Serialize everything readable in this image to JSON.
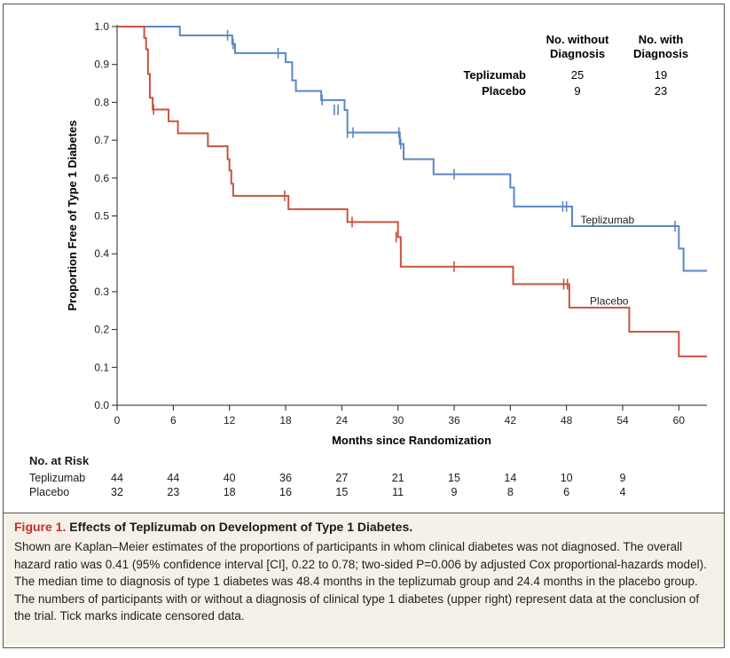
{
  "chart_data": {
    "type": "line",
    "subtype": "kaplan-meier step",
    "xlabel": "Months since Randomization",
    "ylabel": "Proportion Free of Type 1 Diabetes",
    "xlim": [
      0,
      63
    ],
    "ylim": [
      0,
      1.0
    ],
    "xticks": [
      "0",
      "6",
      "12",
      "18",
      "24",
      "30",
      "36",
      "42",
      "48",
      "54",
      "60"
    ],
    "xtick_values": [
      0,
      6,
      12,
      18,
      24,
      30,
      36,
      42,
      48,
      54,
      60
    ],
    "yticks": [
      "0.0",
      "0.1",
      "0.2",
      "0.3",
      "0.4",
      "0.5",
      "0.6",
      "0.7",
      "0.8",
      "0.9",
      "1.0"
    ],
    "ytick_values": [
      0,
      0.1,
      0.2,
      0.3,
      0.4,
      0.5,
      0.6,
      0.7,
      0.8,
      0.9,
      1.0
    ],
    "grid": false,
    "series": [
      {
        "name": "Teplizumab",
        "color": "#5b87c2",
        "steps": [
          [
            0,
            1.0
          ],
          [
            6.7,
            0.977
          ],
          [
            12.3,
            0.954
          ],
          [
            12.6,
            0.93
          ],
          [
            18.0,
            0.906
          ],
          [
            18.7,
            0.858
          ],
          [
            19.1,
            0.83
          ],
          [
            21.8,
            0.806
          ],
          [
            24.3,
            0.78
          ],
          [
            24.6,
            0.72
          ],
          [
            30.2,
            0.69
          ],
          [
            30.6,
            0.65
          ],
          [
            33.8,
            0.61
          ],
          [
            42.0,
            0.575
          ],
          [
            42.4,
            0.525
          ],
          [
            48.6,
            0.473
          ],
          [
            60.0,
            0.414
          ],
          [
            60.5,
            0.355
          ],
          [
            63,
            0.355
          ]
        ],
        "censored": [
          [
            11.8,
            0.977
          ],
          [
            12.4,
            0.954
          ],
          [
            17.2,
            0.93
          ],
          [
            21.9,
            0.806
          ],
          [
            23.2,
            0.78
          ],
          [
            23.6,
            0.78
          ],
          [
            24.6,
            0.72
          ],
          [
            25.2,
            0.72
          ],
          [
            30.1,
            0.72
          ],
          [
            30.3,
            0.69
          ],
          [
            36.0,
            0.61
          ],
          [
            47.6,
            0.525
          ],
          [
            48.0,
            0.525
          ],
          [
            59.6,
            0.473
          ]
        ]
      },
      {
        "name": "Placebo",
        "color": "#c9533f",
        "steps": [
          [
            0,
            1.0
          ],
          [
            2.9,
            0.97
          ],
          [
            3.1,
            0.94
          ],
          [
            3.3,
            0.875
          ],
          [
            3.5,
            0.812
          ],
          [
            3.8,
            0.781
          ],
          [
            5.5,
            0.75
          ],
          [
            6.5,
            0.718
          ],
          [
            9.7,
            0.684
          ],
          [
            11.8,
            0.65
          ],
          [
            12.0,
            0.62
          ],
          [
            12.2,
            0.585
          ],
          [
            12.4,
            0.553
          ],
          [
            18.3,
            0.518
          ],
          [
            24.6,
            0.484
          ],
          [
            30.0,
            0.444
          ],
          [
            30.3,
            0.366
          ],
          [
            42.3,
            0.32
          ],
          [
            48.3,
            0.258
          ],
          [
            54.7,
            0.194
          ],
          [
            60.0,
            0.129
          ],
          [
            63,
            0.129
          ]
        ],
        "censored": [
          [
            3.9,
            0.781
          ],
          [
            17.9,
            0.553
          ],
          [
            25.1,
            0.484
          ],
          [
            29.8,
            0.444
          ],
          [
            36.0,
            0.366
          ],
          [
            47.7,
            0.32
          ],
          [
            48.1,
            0.32
          ]
        ]
      }
    ],
    "annotations": [
      {
        "text": "Teplizumab",
        "x": 49.5,
        "y": 0.49
      },
      {
        "text": "Placebo",
        "x": 50.5,
        "y": 0.275
      }
    ]
  },
  "diagnosis_table": {
    "col1": [
      "No. without",
      "Diagnosis"
    ],
    "col2": [
      "No. with",
      "Diagnosis"
    ],
    "rows": [
      {
        "label": "Teplizumab",
        "without": "25",
        "with": "19"
      },
      {
        "label": "Placebo",
        "without": "9",
        "with": "23"
      }
    ]
  },
  "risk": {
    "title": "No. at Risk",
    "rows": [
      {
        "label": "Teplizumab",
        "values": [
          "44",
          "44",
          "40",
          "36",
          "27",
          "21",
          "15",
          "14",
          "10",
          "9"
        ]
      },
      {
        "label": "Placebo",
        "values": [
          "32",
          "23",
          "18",
          "16",
          "15",
          "11",
          "9",
          "8",
          "6",
          "4"
        ]
      }
    ]
  },
  "caption": {
    "figure_label": "Figure 1.",
    "title": "Effects of Teplizumab on Development of Type 1 Diabetes.",
    "text": "Shown are Kaplan–Meier estimates of the proportions of participants in whom clinical diabetes was not diagnosed. The overall hazard ratio was 0.41 (95% confidence interval [CI], 0.22 to 0.78; two-sided P=0.006 by adjusted Cox proportional-hazards model). The median time to diagnosis of type 1 diabetes was 48.4 months in the teplizumab group and 24.4 months in the placebo group. The numbers of participants with or without a diagnosis of clinical type 1 diabetes (upper right) represent data at the conclusion of the trial. Tick marks indicate censored data."
  }
}
